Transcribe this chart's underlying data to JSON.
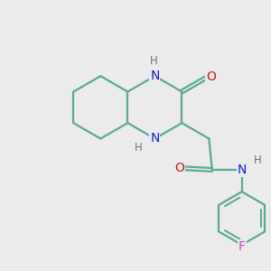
{
  "bg_color": "#ebebeb",
  "bond_color": "#5aaa96",
  "bond_width": 1.6,
  "atom_colors": {
    "N": "#1a1acc",
    "O": "#cc1a1a",
    "F": "#cc44cc",
    "H": "#707070",
    "C": "#000000"
  },
  "font_size_atom": 10,
  "font_size_H": 8.5
}
